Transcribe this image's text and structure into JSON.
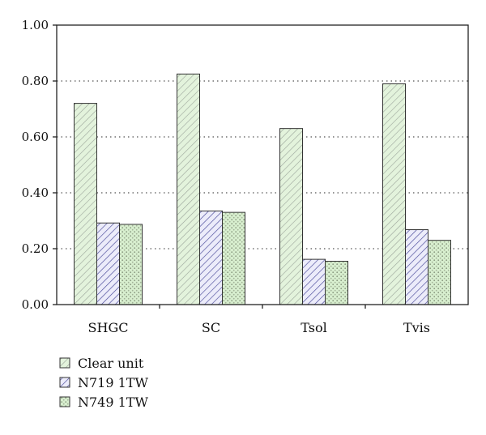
{
  "chart_data": {
    "type": "bar",
    "categories": [
      "SHGC",
      "SC",
      "Tsol",
      "Tvis"
    ],
    "series": [
      {
        "name": "Clear unit",
        "values": [
          0.72,
          0.825,
          0.63,
          0.79
        ],
        "color": "#dff2d8",
        "hatch": "#9aa39a"
      },
      {
        "name": "N719 1TW",
        "values": [
          0.292,
          0.335,
          0.162,
          0.268
        ],
        "color": "#e6e6f8",
        "hatch": "#4a4a9a"
      },
      {
        "name": "N749 1TW",
        "values": [
          0.287,
          0.33,
          0.155,
          0.23
        ],
        "color": "#d8efcf",
        "hatch": "#8a9a80"
      }
    ],
    "ylim": [
      0,
      1.0
    ],
    "yticks": [
      "0.00",
      "0.20",
      "0.40",
      "0.60",
      "0.80",
      "1.00"
    ],
    "grid": "horizontal-dotted",
    "legend_position": "bottom-left"
  }
}
